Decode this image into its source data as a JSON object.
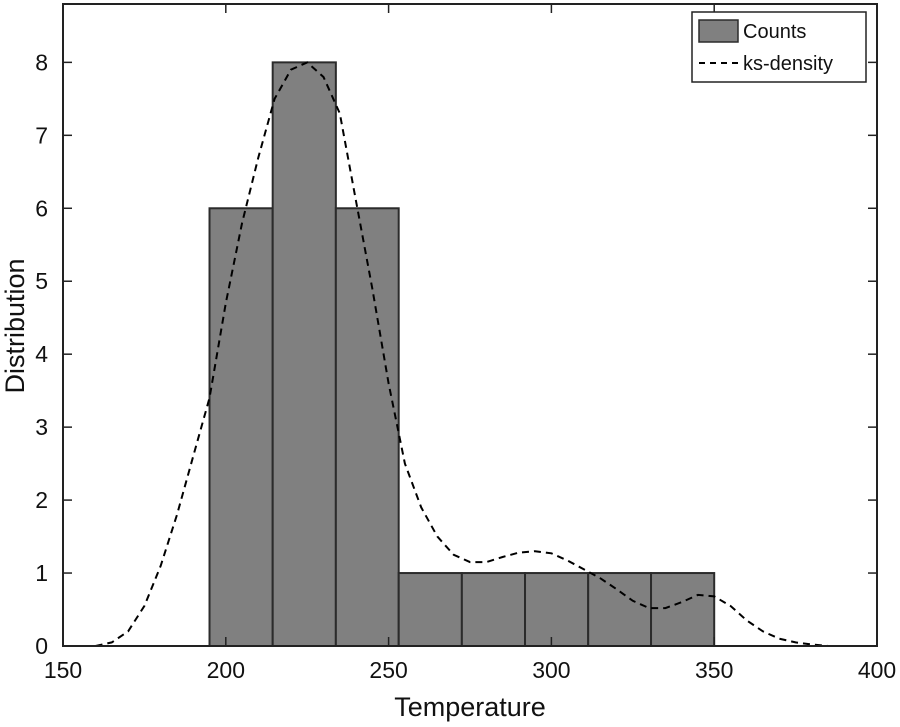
{
  "chart_data": {
    "type": "bar",
    "title": "",
    "xlabel": "Temperature",
    "ylabel": "Distribution",
    "xlim": [
      150,
      400
    ],
    "ylim": [
      0,
      8.8
    ],
    "xticks": [
      150,
      200,
      250,
      300,
      350,
      400
    ],
    "yticks": [
      0,
      1,
      2,
      3,
      4,
      5,
      6,
      7,
      8
    ],
    "grid": false,
    "legend_position": "top-right",
    "colors": {
      "bars": "#808080",
      "bar_edge": "#2b2b2b",
      "kde": "#000000",
      "axes": "#222222"
    },
    "series": [
      {
        "name": "Counts",
        "kind": "histogram",
        "bin_edges": [
          195,
          214.4,
          233.8,
          253.1,
          272.5,
          291.9,
          311.3,
          330.6,
          350
        ],
        "values": [
          6,
          8,
          6,
          1,
          1,
          1,
          1,
          1
        ]
      },
      {
        "name": "ks-density",
        "kind": "line",
        "line_style": "dashed",
        "x": [
          160,
          165,
          170,
          175,
          180,
          185,
          190,
          195,
          200,
          205,
          210,
          215,
          220,
          225,
          230,
          235,
          240,
          245,
          250,
          255,
          260,
          265,
          270,
          275,
          280,
          285,
          290,
          295,
          300,
          305,
          310,
          315,
          320,
          325,
          330,
          335,
          340,
          345,
          350,
          355,
          360,
          365,
          370,
          375,
          380,
          385
        ],
        "y": [
          0,
          0.05,
          0.2,
          0.55,
          1.1,
          1.8,
          2.6,
          3.4,
          4.7,
          5.8,
          6.7,
          7.5,
          7.9,
          8.0,
          7.8,
          7.3,
          6.1,
          4.9,
          3.6,
          2.5,
          1.9,
          1.5,
          1.25,
          1.15,
          1.15,
          1.22,
          1.28,
          1.3,
          1.27,
          1.17,
          1.05,
          0.93,
          0.78,
          0.62,
          0.52,
          0.52,
          0.6,
          0.7,
          0.68,
          0.55,
          0.35,
          0.2,
          0.1,
          0.05,
          0.02,
          0.0
        ]
      }
    ]
  }
}
